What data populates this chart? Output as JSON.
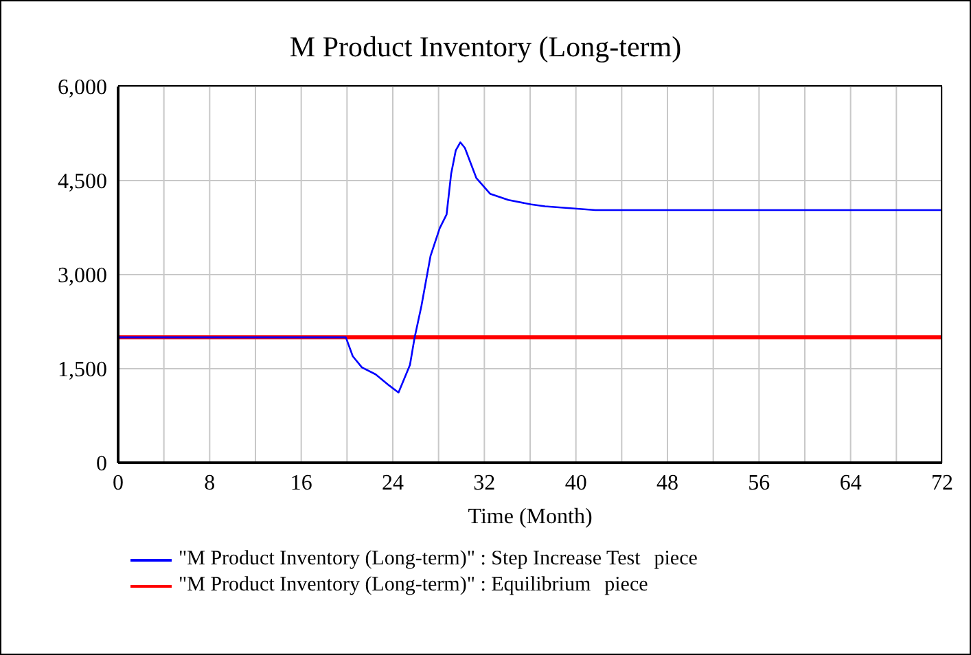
{
  "chart_data": {
    "type": "line",
    "title": "M Product Inventory (Long-term)",
    "xlabel": "Time (Month)",
    "xlim": [
      0,
      72
    ],
    "xticks": [
      0,
      {
        "value": 4,
        "label": null
      },
      8,
      {
        "value": 12,
        "label": null
      },
      16,
      {
        "value": 20,
        "label": null
      },
      24,
      {
        "value": 28,
        "label": null
      },
      32,
      {
        "value": 36,
        "label": null
      },
      40,
      {
        "value": 44,
        "label": null
      },
      48,
      {
        "value": 52,
        "label": null
      },
      56,
      {
        "value": 60,
        "label": null
      },
      64,
      {
        "value": 68,
        "label": null
      },
      72
    ],
    "ylim": [
      0,
      6000
    ],
    "yticks": [
      {
        "value": 0,
        "label": "0"
      },
      {
        "value": 1500,
        "label": "1,500"
      },
      {
        "value": 3000,
        "label": "3,000"
      },
      {
        "value": 4500,
        "label": "4,500"
      },
      {
        "value": 6000,
        "label": "6,000"
      }
    ],
    "grid": true,
    "legend": "bottom",
    "marker": "none",
    "line_style": "solid",
    "annotations": [
      "piece",
      "piece"
    ],
    "series": [
      {
        "name": "\"M Product Inventory (Long-term)\" : Step Increase Test",
        "color": "#0000ff",
        "x": [
          0,
          19.9,
          20.5,
          21.3,
          22.5,
          23.7,
          24.5,
          25.5,
          25.9,
          26.5,
          27.3,
          28.1,
          28.7,
          29.1,
          29.5,
          29.9,
          30.3,
          31.3,
          32.5,
          34.1,
          36.1,
          37.3,
          41.7,
          72
        ],
        "values": [
          2000,
          2000,
          1700,
          1520,
          1410,
          1230,
          1120,
          1560,
          1990,
          2500,
          3300,
          3740,
          3960,
          4610,
          4980,
          5110,
          5020,
          4540,
          4290,
          4190,
          4120,
          4090,
          4030,
          4030
        ]
      },
      {
        "name": "\"M Product Inventory (Long-term)\" : Equilibrium",
        "color": "#ff0000",
        "x": [
          0,
          72
        ],
        "values": [
          2000,
          2000
        ]
      }
    ]
  }
}
